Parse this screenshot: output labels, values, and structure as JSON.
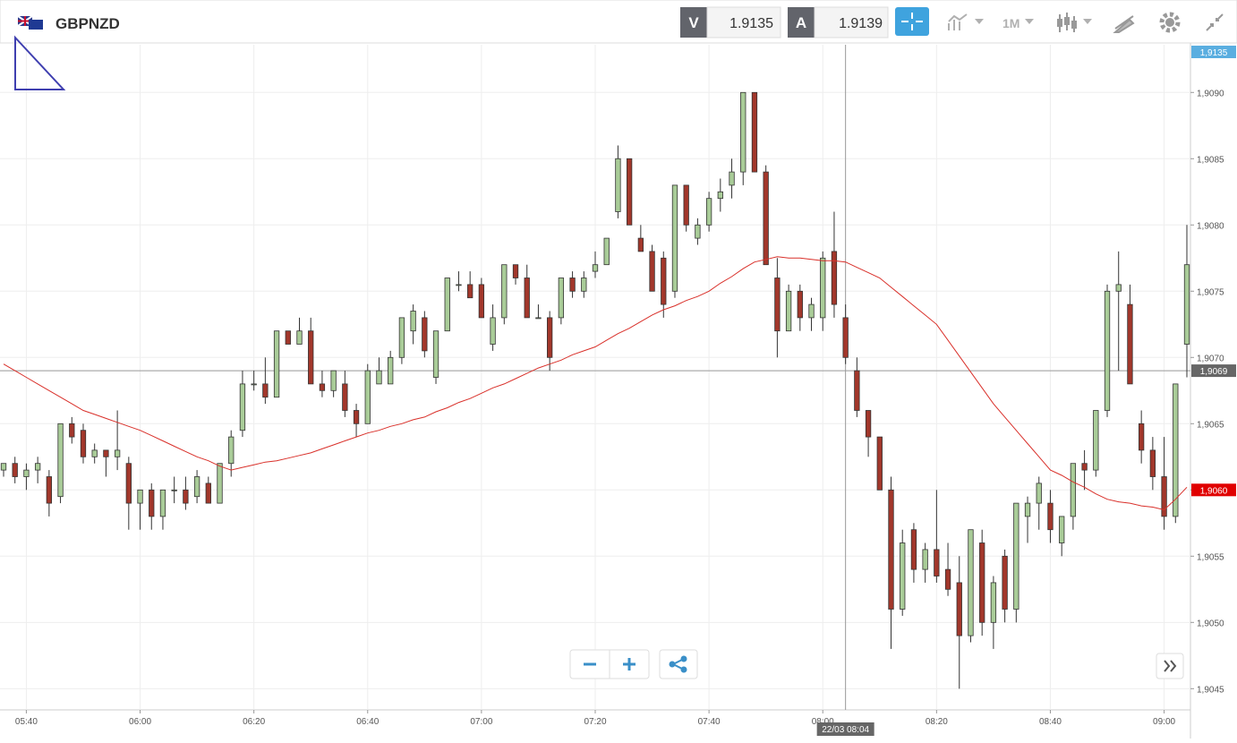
{
  "header": {
    "symbol": "GBPNZD",
    "sell_label": "V",
    "sell": "1.9135",
    "buy_label": "A",
    "buy": "1.9139",
    "timeframe": "1M"
  },
  "chart_data": {
    "type": "candlestick",
    "x": [
      "05:36",
      "05:38",
      "05:40",
      "05:42",
      "05:44",
      "05:46",
      "05:48",
      "05:50",
      "05:52",
      "05:54",
      "05:56",
      "05:58",
      "06:00",
      "06:02",
      "06:04",
      "06:06",
      "06:08",
      "06:10",
      "06:12",
      "06:14",
      "06:16",
      "06:18",
      "06:20",
      "06:22",
      "06:24",
      "06:26",
      "06:28",
      "06:30",
      "06:32",
      "06:34",
      "06:36",
      "06:38",
      "06:40",
      "06:42",
      "06:44",
      "06:46",
      "06:48",
      "06:50",
      "06:52",
      "06:54",
      "06:56",
      "06:58",
      "07:00",
      "07:02",
      "07:04",
      "07:06",
      "07:08",
      "07:10",
      "07:12",
      "07:14",
      "07:16",
      "07:18",
      "07:20",
      "07:22",
      "07:24",
      "07:26",
      "07:28",
      "07:30",
      "07:32",
      "07:34",
      "07:36",
      "07:38",
      "07:40",
      "07:42",
      "07:44",
      "07:46",
      "07:48",
      "07:50",
      "07:52",
      "07:54",
      "07:56",
      "07:58",
      "08:00",
      "08:02",
      "08:04",
      "08:06",
      "08:08",
      "08:10",
      "08:12",
      "08:14",
      "08:16",
      "08:18",
      "08:20",
      "08:22",
      "08:24",
      "08:26",
      "08:28",
      "08:30",
      "08:32",
      "08:34",
      "08:36",
      "08:38",
      "08:40",
      "08:42",
      "08:44",
      "08:46",
      "08:48",
      "08:50",
      "08:52",
      "08:54",
      "08:56",
      "08:58",
      "09:00",
      "09:02",
      "09:04"
    ],
    "open": [
      1.90615,
      1.9062,
      1.9061,
      1.90615,
      1.9061,
      1.90595,
      1.9065,
      1.90645,
      1.90625,
      1.9063,
      1.90625,
      1.9062,
      1.9059,
      1.906,
      1.9058,
      1.906,
      1.906,
      1.90595,
      1.90605,
      1.9059,
      1.9062,
      1.90645,
      1.9068,
      1.9068,
      1.9067,
      1.9072,
      1.9071,
      1.9072,
      1.9068,
      1.90675,
      1.9068,
      1.9066,
      1.9065,
      1.9068,
      1.9068,
      1.907,
      1.9072,
      1.9073,
      1.90685,
      1.9072,
      1.90755,
      1.90755,
      1.90755,
      1.9071,
      1.9073,
      1.9077,
      1.9076,
      1.9073,
      1.9073,
      1.9073,
      1.9076,
      1.9075,
      1.90765,
      1.9077,
      1.9081,
      1.9085,
      1.9079,
      1.9078,
      1.90775,
      1.9075,
      1.9083,
      1.9079,
      1.908,
      1.9082,
      1.9083,
      1.9084,
      1.909,
      1.9084,
      1.9076,
      1.9072,
      1.9075,
      1.9073,
      1.9073,
      1.9078,
      1.9073,
      1.9069,
      1.9066,
      1.9064,
      1.906,
      1.9051,
      1.9057,
      1.9054,
      1.90555,
      1.9054,
      1.9053,
      1.9049,
      1.9056,
      1.905,
      1.9055,
      1.9051,
      1.9058,
      1.9059,
      1.9059,
      1.9056,
      1.9058,
      1.9062,
      1.90615,
      1.9066,
      1.9075,
      1.9074,
      1.9065,
      1.9063,
      1.9061,
      1.9058,
      1.9071
    ],
    "high": [
      1.9062,
      1.90625,
      1.9062,
      1.90625,
      1.90615,
      1.9065,
      1.90655,
      1.9065,
      1.90635,
      1.9063,
      1.9066,
      1.90625,
      1.906,
      1.90605,
      1.906,
      1.9061,
      1.9061,
      1.90615,
      1.9061,
      1.9062,
      1.90645,
      1.9069,
      1.9069,
      1.907,
      1.9072,
      1.9072,
      1.9073,
      1.9073,
      1.9069,
      1.9069,
      1.9069,
      1.90665,
      1.90695,
      1.907,
      1.90705,
      1.9073,
      1.9074,
      1.90735,
      1.9072,
      1.9076,
      1.90765,
      1.90765,
      1.9076,
      1.9074,
      1.9077,
      1.9077,
      1.9077,
      1.9074,
      1.90735,
      1.9076,
      1.90765,
      1.90765,
      1.9078,
      1.9079,
      1.9086,
      1.9085,
      1.908,
      1.90785,
      1.9078,
      1.9083,
      1.9083,
      1.90805,
      1.90825,
      1.90835,
      1.9085,
      1.909,
      1.909,
      1.90845,
      1.90775,
      1.90755,
      1.90755,
      1.90745,
      1.9078,
      1.9081,
      1.9074,
      1.907,
      1.9066,
      1.9064,
      1.9061,
      1.9057,
      1.90575,
      1.9056,
      1.906,
      1.9056,
      1.9055,
      1.9057,
      1.9057,
      1.90535,
      1.90555,
      1.9059,
      1.90595,
      1.9061,
      1.906,
      1.9058,
      1.9062,
      1.9063,
      1.9066,
      1.90755,
      1.9078,
      1.90755,
      1.9066,
      1.9064,
      1.9064,
      1.9068,
      1.908
    ],
    "low": [
      1.9061,
      1.90605,
      1.906,
      1.90605,
      1.9058,
      1.9059,
      1.90635,
      1.9062,
      1.9062,
      1.9061,
      1.90615,
      1.9057,
      1.9057,
      1.9057,
      1.9057,
      1.9059,
      1.90585,
      1.9059,
      1.9059,
      1.9059,
      1.9061,
      1.9064,
      1.90675,
      1.90665,
      1.9067,
      1.9071,
      1.9071,
      1.9068,
      1.9067,
      1.9067,
      1.90655,
      1.9064,
      1.9065,
      1.9068,
      1.9068,
      1.90695,
      1.9071,
      1.907,
      1.9068,
      1.9072,
      1.9075,
      1.90745,
      1.9073,
      1.90705,
      1.90725,
      1.90755,
      1.9073,
      1.9073,
      1.9069,
      1.90725,
      1.90745,
      1.90745,
      1.9076,
      1.9077,
      1.90805,
      1.908,
      1.9078,
      1.9075,
      1.9073,
      1.90745,
      1.90795,
      1.90785,
      1.90795,
      1.9081,
      1.9082,
      1.9083,
      1.9084,
      1.9077,
      1.907,
      1.9072,
      1.9072,
      1.9072,
      1.9072,
      1.9073,
      1.90695,
      1.90655,
      1.90625,
      1.906,
      1.9048,
      1.90505,
      1.9053,
      1.9053,
      1.9053,
      1.9052,
      1.9045,
      1.90485,
      1.9049,
      1.9048,
      1.905,
      1.905,
      1.9056,
      1.9057,
      1.9056,
      1.9055,
      1.9057,
      1.906,
      1.9061,
      1.90655,
      1.9069,
      1.9068,
      1.9062,
      1.906,
      1.9057,
      1.90575,
      1.90685
    ],
    "close": [
      1.9062,
      1.9061,
      1.90615,
      1.9062,
      1.9059,
      1.9065,
      1.9064,
      1.90625,
      1.9063,
      1.90625,
      1.9063,
      1.9059,
      1.906,
      1.9058,
      1.906,
      1.906,
      1.9059,
      1.9061,
      1.9059,
      1.9062,
      1.9064,
      1.9068,
      1.9068,
      1.9067,
      1.9072,
      1.9071,
      1.9072,
      1.9068,
      1.90675,
      1.9069,
      1.9066,
      1.9065,
      1.9069,
      1.9069,
      1.907,
      1.9073,
      1.90735,
      1.90705,
      1.9072,
      1.9076,
      1.90755,
      1.90745,
      1.9073,
      1.9073,
      1.9077,
      1.9076,
      1.9073,
      1.9073,
      1.907,
      1.9076,
      1.9075,
      1.9076,
      1.9077,
      1.9079,
      1.9085,
      1.908,
      1.9078,
      1.9075,
      1.9074,
      1.9083,
      1.908,
      1.908,
      1.9082,
      1.90825,
      1.9084,
      1.909,
      1.9084,
      1.9077,
      1.9072,
      1.9075,
      1.9073,
      1.9074,
      1.90775,
      1.9074,
      1.907,
      1.9066,
      1.9064,
      1.906,
      1.9051,
      1.9056,
      1.9054,
      1.90555,
      1.90535,
      1.90525,
      1.9049,
      1.9057,
      1.905,
      1.9053,
      1.9051,
      1.9059,
      1.9059,
      1.90605,
      1.9057,
      1.9058,
      1.9062,
      1.90615,
      1.9066,
      1.9075,
      1.90755,
      1.9068,
      1.9063,
      1.9061,
      1.9058,
      1.9068,
      1.9077
    ],
    "up_color": "#a9cc98",
    "down_color": "#a2372b",
    "moving_average": {
      "color": "#d9302a",
      "values": [
        1.90695,
        1.9069,
        1.90685,
        1.9068,
        1.90675,
        1.9067,
        1.90665,
        1.9066,
        1.90657,
        1.90654,
        1.90651,
        1.90648,
        1.90645,
        1.90641,
        1.90637,
        1.90633,
        1.90629,
        1.90625,
        1.90622,
        1.90618,
        1.90615,
        1.90617,
        1.90619,
        1.90621,
        1.90622,
        1.90624,
        1.90626,
        1.90628,
        1.90631,
        1.90634,
        1.90637,
        1.9064,
        1.90643,
        1.90645,
        1.90648,
        1.9065,
        1.90653,
        1.90655,
        1.90659,
        1.90662,
        1.90666,
        1.90669,
        1.90673,
        1.90677,
        1.9068,
        1.90684,
        1.90688,
        1.90692,
        1.90695,
        1.90698,
        1.90702,
        1.90705,
        1.90708,
        1.90713,
        1.90718,
        1.90722,
        1.90727,
        1.90732,
        1.90736,
        1.90739,
        1.90743,
        1.90746,
        1.9075,
        1.90756,
        1.90761,
        1.90767,
        1.90772,
        1.90774,
        1.90776,
        1.90775,
        1.90775,
        1.90774,
        1.90773,
        1.90773,
        1.90772,
        1.90768,
        1.90764,
        1.9076,
        1.90753,
        1.90746,
        1.90739,
        1.90732,
        1.90725,
        1.90713,
        1.90701,
        1.90689,
        1.90677,
        1.90665,
        1.90655,
        1.90645,
        1.90635,
        1.90625,
        1.90615,
        1.90611,
        1.90606,
        1.90602,
        1.90597,
        1.90593,
        1.90591,
        1.9059,
        1.90588,
        1.90587,
        1.90585,
        1.90593,
        1.90602
      ]
    },
    "xlim": [
      "05:36",
      "09:04"
    ],
    "xticks": [
      "05:40",
      "06:00",
      "06:20",
      "06:40",
      "07:00",
      "07:20",
      "07:40",
      "08:00",
      "08:20",
      "08:40",
      "09:00"
    ],
    "ylim": [
      1.90434,
      1.90936
    ],
    "yticks": [
      {
        "value": 1.9045,
        "label": "1,9045"
      },
      {
        "value": 1.905,
        "label": "1,9050"
      },
      {
        "value": 1.9055,
        "label": "1,9055"
      },
      {
        "value": 1.906,
        "label": "1,9060"
      },
      {
        "value": 1.9065,
        "label": "1,9065"
      },
      {
        "value": 1.907,
        "label": "1,9070"
      },
      {
        "value": 1.9075,
        "label": "1,9075"
      },
      {
        "value": 1.908,
        "label": "1,9080"
      },
      {
        "value": 1.9085,
        "label": "1,9085"
      },
      {
        "value": 1.909,
        "label": "1,9090"
      }
    ],
    "grid": true,
    "bid_tag": "1,9135",
    "last_price": {
      "value": 1.906,
      "label": "1,9060",
      "color": "#e00000"
    },
    "crosshair": {
      "x": "08:04",
      "x_label": "22/03 08:04",
      "y": 1.9069,
      "y_label": "1,9069"
    }
  }
}
